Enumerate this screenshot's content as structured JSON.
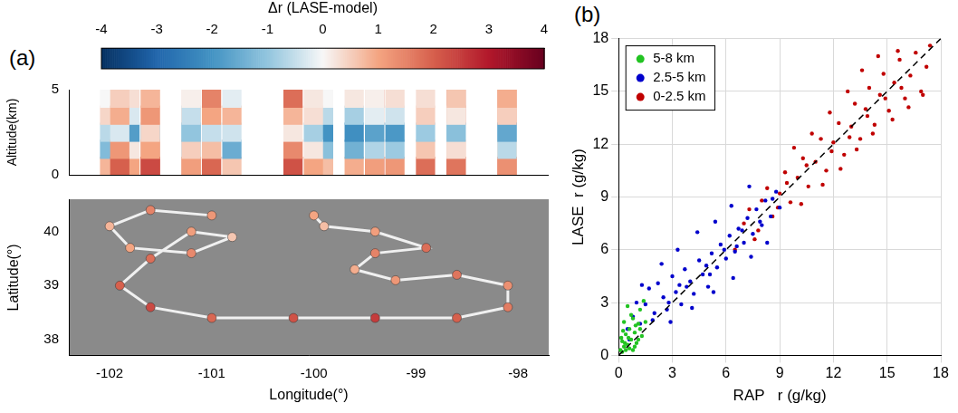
{
  "chart_data": [
    {
      "type": "curtain",
      "panel_label": "(a)",
      "colorbar": {
        "title": "Δr (LASE-model)",
        "range": [
          -4,
          4
        ],
        "ticks": [
          -4,
          -3,
          -2,
          -1,
          0,
          1,
          2,
          3,
          4
        ]
      },
      "y_label": "Altitude(km)",
      "xlim": [
        -102.4,
        -97.7
      ],
      "xticks": [
        -102,
        -101,
        -100,
        -99,
        -98
      ],
      "ylim": [
        0,
        5
      ],
      "yticks": [
        0,
        5
      ],
      "tick_labels": "y",
      "grid": false,
      "marker": "square",
      "altitudes": [
        0.5,
        1.5,
        2.5,
        3.5,
        4.5
      ],
      "delta_r": [
        [
          1.2,
          0.3,
          -1.0,
          0.5,
          0.2
        ],
        [
          1.5,
          -0.5,
          -1.5,
          0.2,
          0.1
        ],
        [
          0.8,
          -1.2,
          -0.6,
          0.4,
          0.0
        ],
        [
          1.0,
          0.2,
          -1.8,
          -0.3,
          0.3
        ],
        [
          1.4,
          -0.8,
          -1.2,
          0.6,
          0.2
        ],
        [
          0.6,
          -1.5,
          -0.4,
          0.8,
          -0.2
        ],
        [
          1.1,
          0.5,
          -1.0,
          -0.5,
          0.1
        ],
        [
          1.8,
          0.9,
          -0.7,
          0.3,
          0.4
        ],
        [
          2.0,
          1.2,
          -0.3,
          0.9,
          0.5
        ],
        [
          2.3,
          1.0,
          0.4,
          1.2,
          0.8
        ],
        [
          1.9,
          0.7,
          -0.5,
          1.0,
          1.5
        ],
        [
          2.2,
          1.4,
          0.2,
          0.8,
          1.8
        ],
        [
          2.5,
          1.1,
          -0.2,
          1.3,
          2.0
        ],
        [
          2.0,
          0.8,
          -0.8,
          1.6,
          1.7
        ],
        [
          1.6,
          0.4,
          -1.3,
          0.9,
          1.2
        ],
        [
          1.3,
          -0.6,
          -1.6,
          0.5,
          0.9
        ],
        [
          1.7,
          0.3,
          -1.1,
          0.2,
          0.6
        ],
        [
          1.2,
          -0.9,
          -1.9,
          -0.4,
          0.3
        ],
        [
          0.9,
          -1.4,
          -2.1,
          -0.8,
          0.2
        ],
        [
          1.5,
          -0.3,
          -1.4,
          0.1,
          0.4
        ],
        [
          1.8,
          0.6,
          -0.9,
          0.5,
          0.3
        ],
        [
          1.1,
          -0.7,
          -1.7,
          -0.2,
          0.1
        ],
        [
          0.7,
          -1.1,
          -2.0,
          -0.6,
          0.0
        ],
        [
          1.0,
          0.2,
          -0.8,
          0.3,
          0.2
        ]
      ]
    },
    {
      "type": "map",
      "x_label": "Longitude(°)",
      "y_label": "Latitude(°)",
      "xlim": [
        -102.4,
        -97.7
      ],
      "xticks": [
        -102,
        -101,
        -100,
        -99,
        -98
      ],
      "ylim": [
        37.7,
        40.6
      ],
      "yticks": [
        38,
        39,
        40
      ],
      "grid": false,
      "color": "#f0f0f0",
      "track": {
        "lon": [
          -101.0,
          -101.6,
          -102.0,
          -101.8,
          -101.2,
          -100.8,
          -101.2,
          -101.6,
          -101.9,
          -101.6,
          -101.0,
          -100.2,
          -99.4,
          -98.6,
          -98.1,
          -98.1,
          -98.6,
          -99.2,
          -99.6,
          -99.4,
          -98.9,
          -99.4,
          -99.9,
          -100.0
        ],
        "lat": [
          40.3,
          40.4,
          40.1,
          39.7,
          39.6,
          39.9,
          40.0,
          39.5,
          39.0,
          38.6,
          38.4,
          38.4,
          38.4,
          38.4,
          38.6,
          39.0,
          39.2,
          39.1,
          39.3,
          39.6,
          39.7,
          40.0,
          40.1,
          40.3
        ]
      }
    },
    {
      "type": "scatter",
      "panel_label": "(b)",
      "x_label": "RAP   r (g/kg)",
      "y_label": "LASE  r (g/kg)",
      "xlim": [
        0,
        18
      ],
      "xticks": [
        0,
        3,
        6,
        9,
        12,
        15,
        18
      ],
      "ylim": [
        0,
        18
      ],
      "yticks": [
        0,
        3,
        6,
        9,
        12,
        15,
        18
      ],
      "grid": true,
      "legend": "upper left",
      "reference_line": {
        "x": [
          0,
          18
        ],
        "y": [
          0,
          18
        ],
        "color": "#000000",
        "line_style": "dashed"
      },
      "series": [
        {
          "name": "5-8 km",
          "color": "#22c322",
          "marker": "circle",
          "values": [
            [
              0.1,
              0.3
            ],
            [
              0.2,
              0.8
            ],
            [
              0.3,
              0.5
            ],
            [
              0.4,
              1.2
            ],
            [
              0.5,
              0.6
            ],
            [
              0.6,
              1.5
            ],
            [
              0.7,
              0.9
            ],
            [
              0.8,
              2.1
            ],
            [
              0.9,
              1.3
            ],
            [
              1.0,
              0.7
            ],
            [
              1.1,
              1.8
            ],
            [
              1.2,
              2.6
            ],
            [
              0.3,
              1.9
            ],
            [
              0.5,
              2.8
            ],
            [
              0.2,
              0.2
            ],
            [
              0.6,
              0.4
            ],
            [
              0.9,
              0.5
            ],
            [
              1.3,
              1.1
            ],
            [
              1.5,
              1.9
            ],
            [
              0.4,
              0.3
            ],
            [
              0.7,
              2.3
            ],
            [
              0.15,
              1.0
            ],
            [
              1.4,
              3.1
            ],
            [
              0.8,
              0.3
            ],
            [
              1.1,
              0.9
            ],
            [
              0.25,
              1.4
            ],
            [
              0.55,
              1.0
            ],
            [
              0.95,
              1.7
            ],
            [
              1.2,
              1.5
            ],
            [
              0.35,
              0.7
            ]
          ]
        },
        {
          "name": "2.5-5 km",
          "color": "#0000cc",
          "marker": "circle",
          "values": [
            [
              0.5,
              1.5
            ],
            [
              0.8,
              2.2
            ],
            [
              1.0,
              3.0
            ],
            [
              1.2,
              1.8
            ],
            [
              1.5,
              2.9
            ],
            [
              1.7,
              3.8
            ],
            [
              2.0,
              2.4
            ],
            [
              2.2,
              4.1
            ],
            [
              2.5,
              3.3
            ],
            [
              2.7,
              2.6
            ],
            [
              3.0,
              4.5
            ],
            [
              3.2,
              3.6
            ],
            [
              3.5,
              2.9
            ],
            [
              3.7,
              4.9
            ],
            [
              4.0,
              4.2
            ],
            [
              4.2,
              3.5
            ],
            [
              4.5,
              5.4
            ],
            [
              4.7,
              4.6
            ],
            [
              5.0,
              3.9
            ],
            [
              5.2,
              5.8
            ],
            [
              5.5,
              5.0
            ],
            [
              5.7,
              6.3
            ],
            [
              6.0,
              5.5
            ],
            [
              6.2,
              6.8
            ],
            [
              6.5,
              5.9
            ],
            [
              6.7,
              7.2
            ],
            [
              7.0,
              6.4
            ],
            [
              7.2,
              7.8
            ],
            [
              7.5,
              6.9
            ],
            [
              7.7,
              8.3
            ],
            [
              8.0,
              7.4
            ],
            [
              8.2,
              8.8
            ],
            [
              8.5,
              7.9
            ],
            [
              8.8,
              9.3
            ],
            [
              9.0,
              8.4
            ],
            [
              1.3,
              4.0
            ],
            [
              2.4,
              5.2
            ],
            [
              3.3,
              6.0
            ],
            [
              4.4,
              7.0
            ],
            [
              5.4,
              7.6
            ],
            [
              6.3,
              8.5
            ],
            [
              7.3,
              9.6
            ],
            [
              2.9,
              1.9
            ],
            [
              4.1,
              2.7
            ],
            [
              5.3,
              3.6
            ],
            [
              6.4,
              4.4
            ],
            [
              7.4,
              5.6
            ],
            [
              8.3,
              6.4
            ],
            [
              3.8,
              3.9
            ],
            [
              5.9,
              6.0
            ],
            [
              6.9,
              7.1
            ],
            [
              4.9,
              5.1
            ],
            [
              1.9,
              2.0
            ],
            [
              2.8,
              3.0
            ],
            [
              0.6,
              0.9
            ],
            [
              3.4,
              4.0
            ],
            [
              5.1,
              4.6
            ],
            [
              6.6,
              6.2
            ],
            [
              7.9,
              7.6
            ],
            [
              8.6,
              8.9
            ]
          ]
        },
        {
          "name": "0-2.5 km",
          "color": "#c00000",
          "marker": "circle",
          "values": [
            [
              6.5,
              6.0
            ],
            [
              7.0,
              7.5
            ],
            [
              7.3,
              8.3
            ],
            [
              7.8,
              7.1
            ],
            [
              8.0,
              8.8
            ],
            [
              8.3,
              9.5
            ],
            [
              8.6,
              7.9
            ],
            [
              9.0,
              9.2
            ],
            [
              9.3,
              10.4
            ],
            [
              9.6,
              8.7
            ],
            [
              10.0,
              10.1
            ],
            [
              10.3,
              11.2
            ],
            [
              10.6,
              9.6
            ],
            [
              11.0,
              11.0
            ],
            [
              11.3,
              12.3
            ],
            [
              11.6,
              10.5
            ],
            [
              12.0,
              12.1
            ],
            [
              12.3,
              13.2
            ],
            [
              12.6,
              11.4
            ],
            [
              13.0,
              13.0
            ],
            [
              13.2,
              14.3
            ],
            [
              13.5,
              12.3
            ],
            [
              13.8,
              14.0
            ],
            [
              14.0,
              15.2
            ],
            [
              14.3,
              13.1
            ],
            [
              14.6,
              14.8
            ],
            [
              14.8,
              16.0
            ],
            [
              15.1,
              13.9
            ],
            [
              15.4,
              15.5
            ],
            [
              15.7,
              16.8
            ],
            [
              16.0,
              14.6
            ],
            [
              16.3,
              15.9
            ],
            [
              16.6,
              17.2
            ],
            [
              16.9,
              15.0
            ],
            [
              17.2,
              16.4
            ],
            [
              17.4,
              17.6
            ],
            [
              9.8,
              11.8
            ],
            [
              10.8,
              12.6
            ],
            [
              11.8,
              13.8
            ],
            [
              12.8,
              15.0
            ],
            [
              13.6,
              16.2
            ],
            [
              14.5,
              17.0
            ],
            [
              10.2,
              8.6
            ],
            [
              11.4,
              9.7
            ],
            [
              12.4,
              10.6
            ],
            [
              13.3,
              11.7
            ],
            [
              14.2,
              12.6
            ],
            [
              15.3,
              13.4
            ],
            [
              16.2,
              14.1
            ],
            [
              17.0,
              14.8
            ],
            [
              8.9,
              8.4
            ],
            [
              11.9,
              11.6
            ],
            [
              12.9,
              12.4
            ],
            [
              13.9,
              13.6
            ],
            [
              14.9,
              14.6
            ],
            [
              15.8,
              15.2
            ],
            [
              7.6,
              6.6
            ],
            [
              9.4,
              9.8
            ],
            [
              10.5,
              10.8
            ],
            [
              15.6,
              17.3
            ]
          ]
        }
      ]
    }
  ]
}
